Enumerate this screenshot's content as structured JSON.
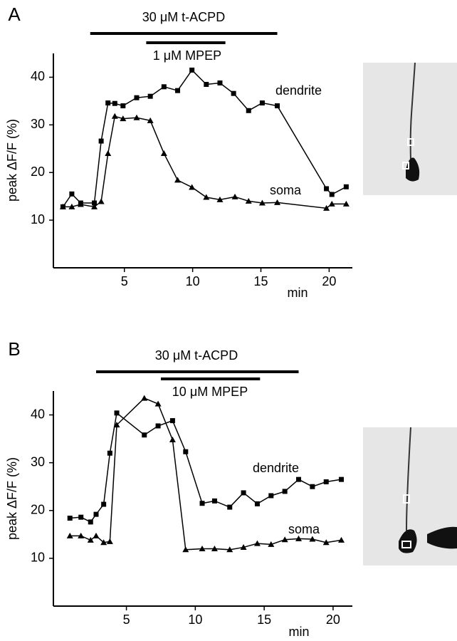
{
  "chart_data": [
    {
      "type": "line",
      "panel": "A",
      "bars": [
        {
          "label": "30 μM t-ACPD",
          "start": 2.5,
          "end": 16.2
        },
        {
          "label": "1 μM MPEP",
          "start": 6.6,
          "end": 12.4
        }
      ],
      "xlabel": "min",
      "ylabel": "peak ΔF/F (%)",
      "xlim": [
        -0.2,
        21.7
      ],
      "ylim": [
        0,
        45
      ],
      "xticks": [
        5,
        10,
        15,
        20
      ],
      "yticks": [
        10,
        20,
        30,
        40
      ],
      "series": [
        {
          "name": "dendrite",
          "marker": "square",
          "color": "#000000",
          "x": [
            0.5,
            1.15,
            1.8,
            2.8,
            3.3,
            3.8,
            4.3,
            4.9,
            5.9,
            6.9,
            7.9,
            8.9,
            9.95,
            11,
            12,
            13,
            14.1,
            15.1,
            16.2,
            19.8,
            20.2,
            21.25
          ],
          "values": [
            12.8,
            15.5,
            13.6,
            13.6,
            26.6,
            34.6,
            34.5,
            34,
            35.7,
            36,
            38,
            37.2,
            41.5,
            38.5,
            38.8,
            36.6,
            33,
            34.6,
            34,
            16.6,
            15.4,
            17
          ]
        },
        {
          "name": "soma",
          "marker": "triangle",
          "color": "#000000",
          "x": [
            0.5,
            1.15,
            1.8,
            2.8,
            3.3,
            3.8,
            4.3,
            4.9,
            5.9,
            6.9,
            7.9,
            8.9,
            9.95,
            11,
            12,
            13.1,
            14.1,
            15.1,
            16.2,
            19.8,
            20.2,
            21.25
          ],
          "values": [
            12.8,
            12.8,
            13.3,
            12.8,
            13.9,
            24,
            31.8,
            31.3,
            31.5,
            30.9,
            24,
            18.4,
            16.9,
            14.8,
            14.3,
            14.9,
            14,
            13.6,
            13.7,
            12.5,
            13.4,
            13.4
          ]
        }
      ]
    },
    {
      "type": "line",
      "panel": "B",
      "bars": [
        {
          "label": "30 μM t-ACPD",
          "start": 2.8,
          "end": 17.5
        },
        {
          "label": "10 μM MPEP",
          "start": 7.5,
          "end": 14.7
        }
      ],
      "xlabel": "min",
      "ylabel": "peak ΔF/F (%)",
      "xlim": [
        -0.3,
        21.4
      ],
      "ylim": [
        0,
        45
      ],
      "xticks": [
        5,
        10,
        15,
        20
      ],
      "yticks": [
        10,
        20,
        30,
        40
      ],
      "series": [
        {
          "name": "dendrite",
          "marker": "square",
          "color": "#000000",
          "x": [
            0.9,
            1.7,
            2.4,
            2.8,
            3.35,
            3.8,
            4.3,
            6.3,
            7.3,
            8.35,
            9.3,
            10.5,
            11.4,
            12.5,
            13.5,
            14.5,
            15.5,
            16.5,
            17.5,
            18.5,
            19.5,
            20.6
          ],
          "values": [
            18.4,
            18.6,
            17.6,
            19.2,
            21.3,
            32,
            40.4,
            35.8,
            37.7,
            38.8,
            32.3,
            21.5,
            22,
            20.7,
            23.7,
            21.4,
            23.1,
            24,
            26.5,
            25,
            26,
            26.5
          ]
        },
        {
          "name": "soma",
          "marker": "triangle",
          "color": "#000000",
          "x": [
            0.9,
            1.7,
            2.4,
            2.8,
            3.35,
            3.8,
            4.3,
            6.3,
            7.3,
            8.35,
            9.3,
            10.5,
            11.4,
            12.5,
            13.5,
            14.5,
            15.5,
            16.5,
            17.5,
            18.5,
            19.5,
            20.6
          ],
          "values": [
            14.7,
            14.7,
            13.8,
            14.7,
            13.3,
            13.5,
            37.9,
            43.5,
            42.3,
            34.8,
            11.8,
            12,
            12,
            11.8,
            12.3,
            13.1,
            12.9,
            13.9,
            14.1,
            14,
            13.3,
            13.8
          ]
        }
      ]
    }
  ]
}
